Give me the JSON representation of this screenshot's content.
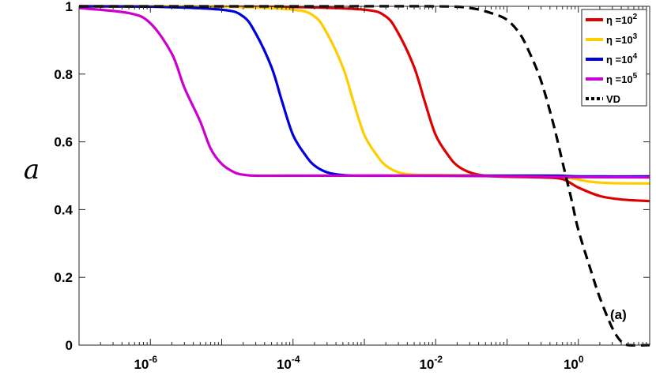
{
  "chart_data": {
    "type": "line",
    "xscale": "log",
    "xlim": [
      1e-07,
      10
    ],
    "ylim": [
      0,
      1
    ],
    "ylabel": "a",
    "xlabel": "",
    "title": "",
    "annotation": "(a)",
    "grid": false,
    "legend_position": "top-right",
    "xticks": [
      {
        "base": "10",
        "exp": "-6",
        "value": 1e-06
      },
      {
        "base": "10",
        "exp": "-4",
        "value": 0.0001
      },
      {
        "base": "10",
        "exp": "-2",
        "value": 0.01
      },
      {
        "base": "10",
        "exp": "0",
        "value": 1
      }
    ],
    "yticks": [
      {
        "label": "0",
        "value": 0
      },
      {
        "label": "0.2",
        "value": 0.2
      },
      {
        "label": "0.4",
        "value": 0.4
      },
      {
        "label": "0.6",
        "value": 0.6
      },
      {
        "label": "0.8",
        "value": 0.8
      },
      {
        "label": "1",
        "value": 1
      }
    ],
    "series": [
      {
        "name_prefix": "η =10",
        "name_exp": "2",
        "color": "#dd0000",
        "dash": "solid",
        "points": [
          [
            1e-07,
            1.0
          ],
          [
            1e-05,
            0.999
          ],
          [
            0.0001,
            0.998
          ],
          [
            0.001,
            0.99
          ],
          [
            0.002,
            0.97
          ],
          [
            0.003,
            0.92
          ],
          [
            0.005,
            0.82
          ],
          [
            0.007,
            0.72
          ],
          [
            0.01,
            0.62
          ],
          [
            0.015,
            0.56
          ],
          [
            0.02,
            0.53
          ],
          [
            0.03,
            0.51
          ],
          [
            0.05,
            0.5
          ],
          [
            0.1,
            0.497
          ],
          [
            0.3,
            0.495
          ],
          [
            0.6,
            0.49
          ],
          [
            1,
            0.465
          ],
          [
            2,
            0.44
          ],
          [
            4,
            0.43
          ],
          [
            10,
            0.425
          ]
        ]
      },
      {
        "name_prefix": "η =10",
        "name_exp": "3",
        "color": "#ffcc00",
        "dash": "solid",
        "points": [
          [
            1e-07,
            1.0
          ],
          [
            1e-05,
            0.999
          ],
          [
            0.0001,
            0.99
          ],
          [
            0.0002,
            0.97
          ],
          [
            0.0003,
            0.92
          ],
          [
            0.0005,
            0.82
          ],
          [
            0.0007,
            0.72
          ],
          [
            0.001,
            0.62
          ],
          [
            0.0015,
            0.56
          ],
          [
            0.002,
            0.53
          ],
          [
            0.003,
            0.51
          ],
          [
            0.005,
            0.503
          ],
          [
            0.01,
            0.502
          ],
          [
            0.1,
            0.5
          ],
          [
            0.4,
            0.5
          ],
          [
            0.8,
            0.492
          ],
          [
            1.5,
            0.482
          ],
          [
            3,
            0.478
          ],
          [
            10,
            0.477
          ]
        ]
      },
      {
        "name_prefix": "η =10",
        "name_exp": "4",
        "color": "#0000dd",
        "dash": "solid",
        "points": [
          [
            1e-07,
            1.0
          ],
          [
            1e-06,
            0.999
          ],
          [
            1e-05,
            0.99
          ],
          [
            2e-05,
            0.97
          ],
          [
            3e-05,
            0.92
          ],
          [
            5e-05,
            0.82
          ],
          [
            7e-05,
            0.72
          ],
          [
            0.0001,
            0.62
          ],
          [
            0.00015,
            0.56
          ],
          [
            0.0002,
            0.53
          ],
          [
            0.0003,
            0.51
          ],
          [
            0.0005,
            0.502
          ],
          [
            0.001,
            0.5
          ],
          [
            0.01,
            0.5
          ],
          [
            0.1,
            0.5
          ],
          [
            0.5,
            0.5
          ],
          [
            1,
            0.498
          ],
          [
            10,
            0.498
          ]
        ]
      },
      {
        "name_prefix": "η =10",
        "name_exp": "5",
        "color": "#cc00cc",
        "dash": "solid",
        "points": [
          [
            1e-07,
            0.995
          ],
          [
            5e-07,
            0.98
          ],
          [
            1e-06,
            0.95
          ],
          [
            2e-06,
            0.86
          ],
          [
            3e-06,
            0.76
          ],
          [
            5e-06,
            0.66
          ],
          [
            7e-06,
            0.58
          ],
          [
            1e-05,
            0.535
          ],
          [
            1.5e-05,
            0.51
          ],
          [
            2e-05,
            0.503
          ],
          [
            3e-05,
            0.5
          ],
          [
            0.0001,
            0.5
          ],
          [
            0.01,
            0.5
          ],
          [
            1,
            0.496
          ],
          [
            10,
            0.495
          ]
        ]
      },
      {
        "name_prefix": "VD",
        "name_exp": "",
        "color": "#000000",
        "dash": "dashed",
        "points": [
          [
            1e-07,
            1.0
          ],
          [
            0.0001,
            1.0
          ],
          [
            0.01,
            1.0
          ],
          [
            0.03,
            0.995
          ],
          [
            0.06,
            0.98
          ],
          [
            0.1,
            0.96
          ],
          [
            0.15,
            0.92
          ],
          [
            0.2,
            0.87
          ],
          [
            0.3,
            0.78
          ],
          [
            0.45,
            0.65
          ],
          [
            0.6,
            0.54
          ],
          [
            0.8,
            0.43
          ],
          [
            1,
            0.34
          ],
          [
            1.5,
            0.22
          ],
          [
            2,
            0.14
          ],
          [
            3,
            0.05
          ],
          [
            4,
            0.01
          ],
          [
            5,
            0.0
          ],
          [
            10,
            0.0
          ]
        ]
      }
    ]
  }
}
